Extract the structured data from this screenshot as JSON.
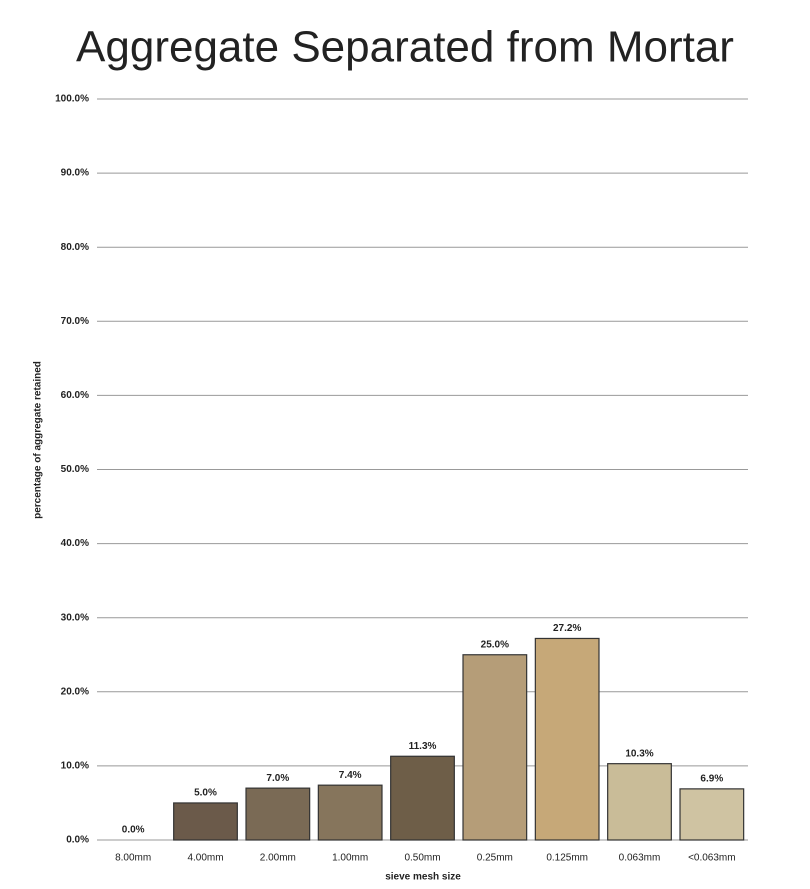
{
  "chart_data": {
    "type": "bar",
    "title": "Aggregate Separated from Mortar",
    "xlabel": "sieve mesh size",
    "ylabel": "percentage of aggregate retained",
    "categories": [
      "8.00mm",
      "4.00mm",
      "2.00mm",
      "1.00mm",
      "0.50mm",
      "0.25mm",
      "0.125mm",
      "0.063mm",
      "<0.063mm"
    ],
    "values": [
      0.0,
      5.0,
      7.0,
      7.4,
      11.3,
      25.0,
      27.2,
      10.3,
      6.9
    ],
    "value_labels": [
      "0.0%",
      "5.0%",
      "7.0%",
      "7.4%",
      "11.3%",
      "25.0%",
      "27.2%",
      "10.3%",
      "6.9%"
    ],
    "colors": [
      "#8a7a60",
      "#6b5a4a",
      "#7a6a55",
      "#86755c",
      "#6e5e48",
      "#b59d78",
      "#c6a878",
      "#c9bc98",
      "#cfc3a2"
    ],
    "ylim": [
      0,
      100
    ],
    "yticks": [
      {
        "value": 0,
        "label": "0.0%"
      },
      {
        "value": 10,
        "label": "10.0%"
      },
      {
        "value": 20,
        "label": "20.0%"
      },
      {
        "value": 30,
        "label": "30.0%"
      },
      {
        "value": 40,
        "label": "40.0%"
      },
      {
        "value": 50,
        "label": "50.0%"
      },
      {
        "value": 60,
        "label": "60.0%"
      },
      {
        "value": 70,
        "label": "70.0%"
      },
      {
        "value": 80,
        "label": "80.0%"
      },
      {
        "value": 90,
        "label": "90.0%"
      },
      {
        "value": 100,
        "label": "100.0%"
      }
    ],
    "grid": true
  }
}
